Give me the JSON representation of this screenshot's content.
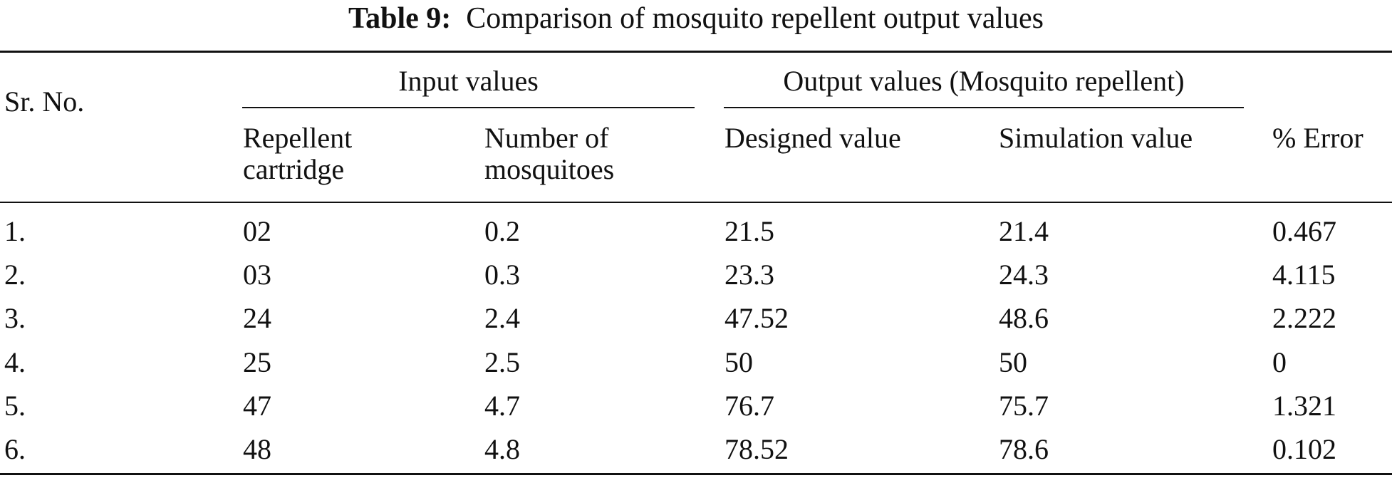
{
  "caption": {
    "label": "Table 9:",
    "title": "Comparison of mosquito repellent output values"
  },
  "header": {
    "sr_no": "Sr. No.",
    "input_group": "Input values",
    "output_group": "Output values (Mosquito repellent)",
    "repellent_line1": "Repellent",
    "repellent_line2": "cartridge",
    "mosquitoes_line1": "Number of",
    "mosquitoes_line2": "mosquitoes",
    "designed": "Designed value",
    "simulation": "Simulation value",
    "error": "% Error"
  },
  "rows": [
    {
      "sr": "1.",
      "cartridge": "02",
      "mosquitoes": "0.2",
      "designed": "21.5",
      "simulation": "21.4",
      "error": "0.467"
    },
    {
      "sr": "2.",
      "cartridge": "03",
      "mosquitoes": "0.3",
      "designed": "23.3",
      "simulation": "24.3",
      "error": "4.115"
    },
    {
      "sr": "3.",
      "cartridge": "24",
      "mosquitoes": "2.4",
      "designed": "47.52",
      "simulation": "48.6",
      "error": "2.222"
    },
    {
      "sr": "4.",
      "cartridge": "25",
      "mosquitoes": "2.5",
      "designed": "50",
      "simulation": "50",
      "error": "0"
    },
    {
      "sr": "5.",
      "cartridge": "47",
      "mosquitoes": "4.7",
      "designed": "76.7",
      "simulation": "75.7",
      "error": "1.321"
    },
    {
      "sr": "6.",
      "cartridge": "48",
      "mosquitoes": "4.8",
      "designed": "78.52",
      "simulation": "78.6",
      "error": "0.102"
    }
  ]
}
